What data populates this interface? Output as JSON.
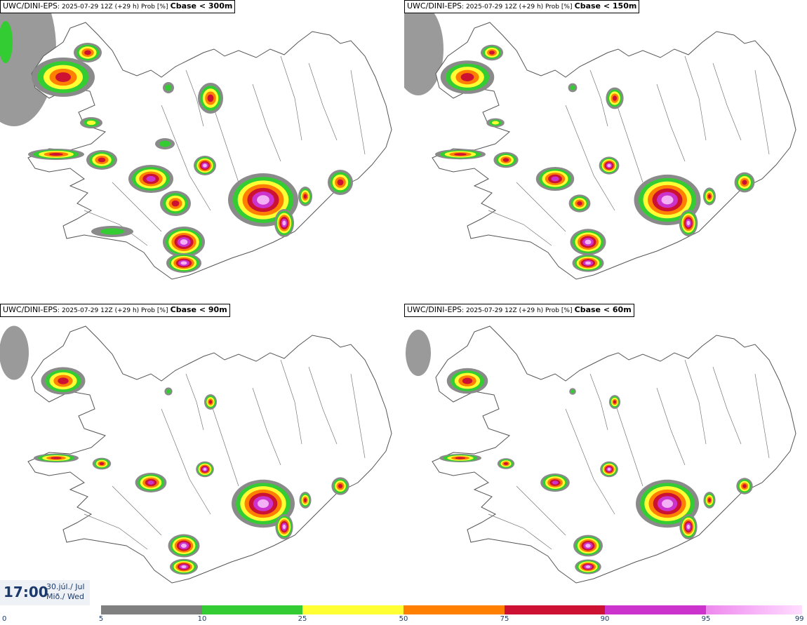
{
  "panels": [
    {
      "source": "UWC/DINI-EPS",
      "run": ": 2025-07-29 12Z (+29 h) Prob [%]",
      "threshold": "Cbase < 300m"
    },
    {
      "source": "UWC/DINI-EPS",
      "run": ": 2025-07-29 12Z (+29 h) Prob [%]",
      "threshold": "Cbase < 150m"
    },
    {
      "source": "UWC/DINI-EPS",
      "run": ": 2025-07-29 12Z (+29 h) Prob [%]",
      "threshold": "Cbase < 90m"
    },
    {
      "source": "UWC/DINI-EPS",
      "run": ": 2025-07-29 12Z (+29 h) Prob [%]",
      "threshold": "Cbase < 60m"
    }
  ],
  "valid_time": {
    "clock": "17:00",
    "date_line": "30.júl./ Jul",
    "day_line": "Mið./ Wed"
  },
  "legend": {
    "ticks": [
      "0",
      "5",
      "10",
      "25",
      "50",
      "75",
      "90",
      "95",
      "99"
    ],
    "colors": [
      "#b3b3b3",
      "#808080",
      "#33cc33",
      "#ffff33",
      "#ff7f00",
      "#cc1133",
      "#cc33cc",
      "#ffbbff"
    ]
  },
  "colors": {
    "land_outline": "#555555",
    "low": "#8a8a8a",
    "green": "#33cc33",
    "yellow": "#ffff33",
    "orange": "#ff7f00",
    "red": "#cc1133",
    "magenta": "#cc33cc",
    "pink": "#f4b0f4"
  }
}
